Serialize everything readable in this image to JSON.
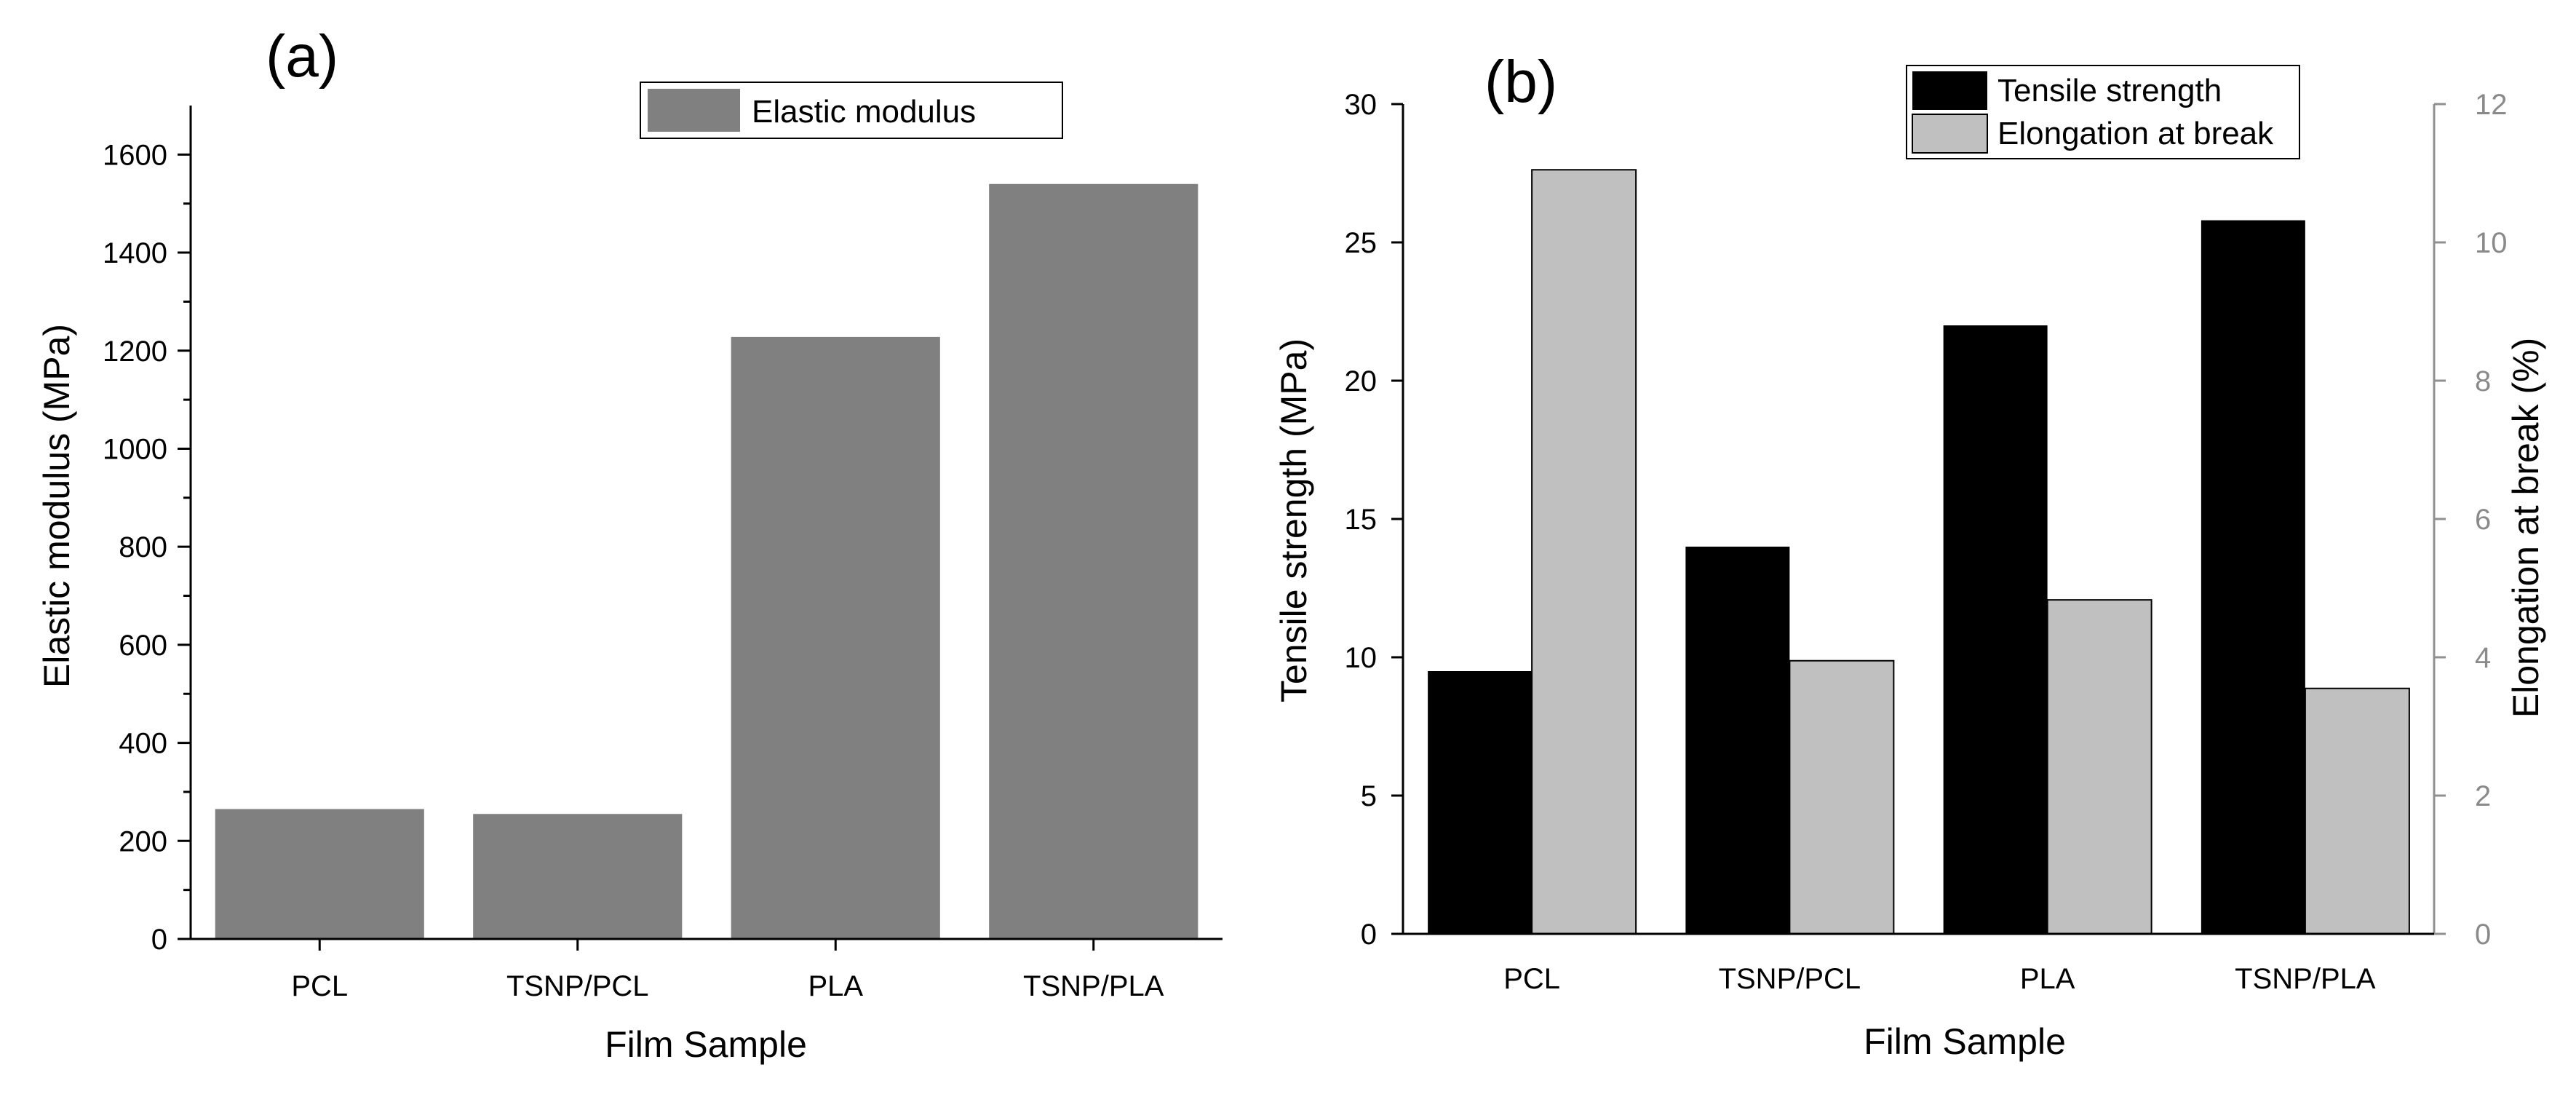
{
  "chart_data": [
    {
      "panel": "(a)",
      "type": "bar",
      "categories": [
        "PCL",
        "TSNP/PCL",
        "PLA",
        "TSNP/PLA"
      ],
      "series": [
        {
          "name": "Elastic modulus",
          "values": [
            265,
            255,
            1228,
            1540
          ],
          "color": "#808080"
        }
      ],
      "xlabel": "Film Sample",
      "ylabel": "Elastic modulus (MPa)",
      "ylim": [
        0,
        1700
      ],
      "yticks": [
        0,
        200,
        400,
        600,
        800,
        1000,
        1200,
        1400,
        1600
      ],
      "legend": "top-right"
    },
    {
      "panel": "(b)",
      "type": "bar",
      "categories": [
        "PCL",
        "TSNP/PCL",
        "PLA",
        "TSNP/PLA"
      ],
      "series": [
        {
          "name": "Tensile strength",
          "axis": "left",
          "values": [
            9.5,
            14.0,
            22.0,
            25.8
          ],
          "color": "#000000"
        },
        {
          "name": "Elongation at break",
          "axis": "right",
          "values": [
            11.05,
            3.95,
            4.83,
            3.55
          ],
          "color": "#c0c0c0"
        }
      ],
      "xlabel": "Film Sample",
      "ylabel": "Tensile strength (MPa)",
      "y2label": "Elongation at break (%)",
      "ylim": [
        0,
        30
      ],
      "yticks": [
        0,
        5,
        10,
        15,
        20,
        25,
        30
      ],
      "y2lim": [
        0,
        12
      ],
      "y2ticks": [
        0,
        2,
        4,
        6,
        8,
        10,
        12
      ],
      "legend": "top-right"
    }
  ]
}
